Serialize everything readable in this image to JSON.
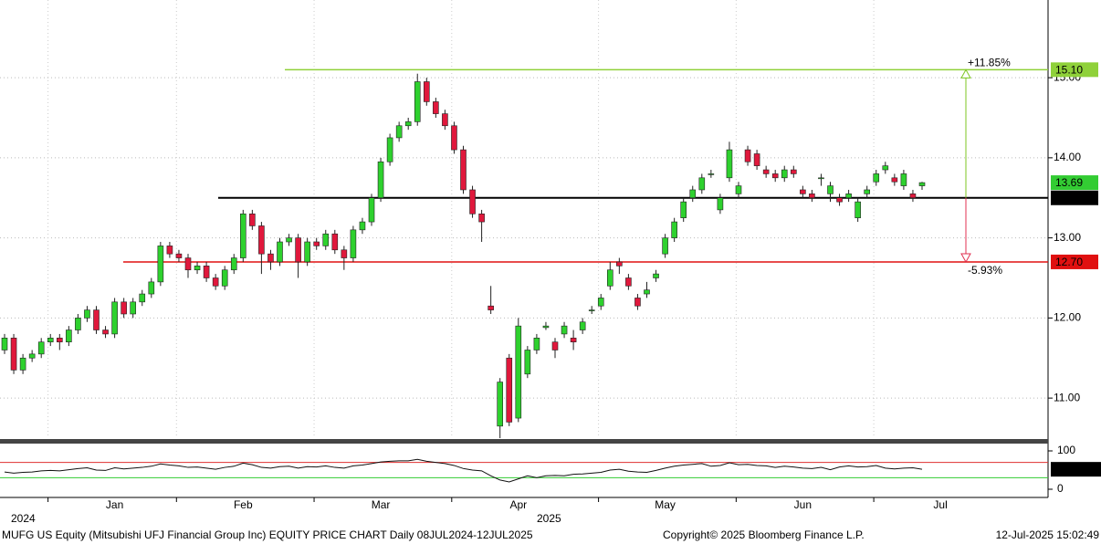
{
  "chart_data": {
    "type": "candlestick",
    "footer_left": "MUFG US Equity (Mitsubishi UFJ Financial Group Inc) EQUITY PRICE CHART  Daily 08JUL2024-12JUL2025",
    "footer_center": "Copyright© 2025 Bloomberg Finance L.P.",
    "footer_right": "12-Jul-2025 15:02:49",
    "year_labels": [
      "2024",
      "2025"
    ],
    "categories": [
      null,
      null,
      null,
      null,
      null,
      null,
      null,
      null,
      null,
      null,
      null,
      null,
      "Jan",
      null,
      null,
      null,
      null,
      null,
      null,
      null,
      null,
      null,
      null,
      null,
      null,
      null,
      "Feb",
      null,
      null,
      null,
      null,
      null,
      null,
      null,
      null,
      null,
      null,
      null,
      null,
      null,
      null,
      "Mar",
      null,
      null,
      null,
      null,
      null,
      null,
      null,
      null,
      null,
      null,
      null,
      null,
      null,
      null,
      "Apr",
      null,
      null,
      null,
      null,
      null,
      null,
      null,
      null,
      null,
      null,
      null,
      null,
      null,
      null,
      null,
      "May",
      null,
      null,
      null,
      null,
      null,
      null,
      null,
      null,
      null,
      null,
      null,
      null,
      null,
      null,
      "Jun",
      null,
      null,
      null,
      null,
      null,
      null,
      null,
      null,
      null,
      null,
      null,
      null,
      null,
      null,
      "Jul"
    ],
    "open": [
      11.6,
      11.75,
      11.35,
      11.5,
      11.55,
      11.7,
      11.75,
      11.7,
      11.85,
      12.0,
      12.1,
      11.85,
      11.8,
      12.2,
      12.05,
      12.2,
      12.3,
      12.45,
      12.9,
      12.8,
      12.75,
      12.6,
      12.65,
      12.5,
      12.4,
      12.6,
      12.75,
      13.3,
      13.15,
      12.8,
      12.7,
      12.95,
      13.0,
      12.7,
      12.95,
      12.9,
      13.05,
      12.85,
      12.75,
      13.1,
      13.2,
      13.5,
      13.95,
      14.25,
      14.4,
      14.45,
      14.95,
      14.7,
      14.55,
      14.4,
      14.1,
      13.6,
      13.3,
      12.15,
      10.65,
      11.5,
      10.75,
      11.3,
      11.6,
      11.88,
      11.7,
      11.8,
      11.75,
      11.85,
      12.1,
      12.15,
      12.4,
      12.7,
      12.5,
      12.25,
      12.3,
      12.5,
      12.8,
      13.0,
      13.25,
      13.5,
      13.6,
      13.8,
      13.35,
      13.75,
      13.55,
      14.1,
      14.05,
      13.85,
      13.8,
      13.75,
      13.85,
      13.6,
      13.55,
      13.75,
      13.55,
      13.5,
      13.5,
      13.25,
      13.55,
      13.7,
      13.85,
      13.75,
      13.65,
      13.55,
      13.65,
      null,
      null
    ],
    "high": [
      11.8,
      11.8,
      11.55,
      11.6,
      11.75,
      11.8,
      11.8,
      11.9,
      12.05,
      12.15,
      12.15,
      11.9,
      12.25,
      12.25,
      12.25,
      12.35,
      12.5,
      12.95,
      12.95,
      12.85,
      12.8,
      12.7,
      12.7,
      12.55,
      12.65,
      12.8,
      13.35,
      13.35,
      13.2,
      12.85,
      13.0,
      13.05,
      13.05,
      13.0,
      13.0,
      13.1,
      13.1,
      12.9,
      13.15,
      13.25,
      13.55,
      14.0,
      14.3,
      14.45,
      14.5,
      15.05,
      15.0,
      14.75,
      14.6,
      14.45,
      14.15,
      13.65,
      13.35,
      12.4,
      11.25,
      11.55,
      12.0,
      11.65,
      11.8,
      11.95,
      11.75,
      11.95,
      11.85,
      12.0,
      12.15,
      12.3,
      12.7,
      12.75,
      12.55,
      12.3,
      12.45,
      12.6,
      13.05,
      13.25,
      13.5,
      13.65,
      13.8,
      13.85,
      13.55,
      14.2,
      13.7,
      14.15,
      14.1,
      13.9,
      13.85,
      13.9,
      13.9,
      13.65,
      13.6,
      13.8,
      13.7,
      13.55,
      13.6,
      13.5,
      13.65,
      13.85,
      13.95,
      13.8,
      13.85,
      13.6,
      13.7,
      null,
      null
    ],
    "low": [
      11.55,
      11.3,
      11.3,
      11.45,
      11.5,
      11.65,
      11.6,
      11.65,
      11.8,
      11.95,
      11.8,
      11.75,
      11.75,
      12.0,
      12.0,
      12.15,
      12.25,
      12.4,
      12.75,
      12.7,
      12.5,
      12.55,
      12.45,
      12.35,
      12.35,
      12.55,
      12.7,
      13.1,
      12.55,
      12.6,
      12.65,
      12.9,
      12.5,
      12.65,
      12.85,
      12.85,
      12.8,
      12.6,
      12.7,
      13.05,
      13.15,
      13.45,
      13.9,
      14.2,
      14.35,
      14.4,
      14.65,
      14.5,
      14.35,
      14.05,
      13.55,
      13.25,
      12.95,
      12.05,
      10.5,
      10.65,
      10.7,
      11.25,
      11.55,
      11.85,
      11.5,
      11.75,
      11.6,
      11.8,
      12.05,
      12.1,
      12.35,
      12.55,
      12.35,
      12.1,
      12.25,
      12.45,
      12.75,
      12.95,
      13.2,
      13.45,
      13.55,
      13.75,
      13.3,
      13.7,
      13.5,
      13.9,
      13.85,
      13.75,
      13.7,
      13.7,
      13.75,
      13.5,
      13.45,
      13.65,
      13.45,
      13.4,
      13.45,
      13.2,
      13.5,
      13.65,
      13.8,
      13.65,
      13.6,
      13.45,
      13.6,
      null,
      null
    ],
    "close": [
      11.75,
      11.35,
      11.5,
      11.55,
      11.7,
      11.75,
      11.7,
      11.85,
      12.0,
      12.1,
      11.85,
      11.8,
      12.2,
      12.05,
      12.2,
      12.3,
      12.45,
      12.9,
      12.8,
      12.75,
      12.6,
      12.65,
      12.5,
      12.4,
      12.6,
      12.75,
      13.3,
      13.15,
      12.8,
      12.7,
      12.95,
      13.0,
      12.7,
      12.95,
      12.9,
      13.05,
      12.85,
      12.75,
      13.1,
      13.2,
      13.5,
      13.95,
      14.25,
      14.4,
      14.45,
      14.95,
      14.7,
      14.55,
      14.4,
      14.1,
      13.6,
      13.3,
      13.2,
      12.1,
      11.2,
      10.7,
      11.9,
      11.6,
      11.75,
      11.9,
      11.6,
      11.9,
      11.7,
      11.95,
      12.1,
      12.25,
      12.6,
      12.65,
      12.4,
      12.15,
      12.35,
      12.55,
      13.0,
      13.2,
      13.45,
      13.6,
      13.75,
      13.8,
      13.5,
      14.1,
      13.65,
      13.95,
      13.9,
      13.8,
      13.75,
      13.85,
      13.8,
      13.55,
      13.5,
      13.75,
      13.65,
      13.45,
      13.55,
      13.45,
      13.6,
      13.8,
      13.9,
      13.7,
      13.8,
      13.5,
      13.69,
      null,
      null
    ],
    "up_color": "#2ed12e",
    "down_color": "#e0183c",
    "ylim": [
      10.5,
      15.97
    ],
    "yticks": [
      {
        "value": 11,
        "label": "11.00"
      },
      {
        "value": 12,
        "label": "12.00"
      },
      {
        "value": 13,
        "label": "13.00"
      },
      {
        "value": 14,
        "label": "14.00"
      },
      {
        "value": 15,
        "label": "15.00"
      }
    ],
    "grid": true,
    "hlines": [
      {
        "value": 15.1,
        "label": "15.10",
        "color": "#8fd13a"
      },
      {
        "value": 13.5,
        "label": "13.50",
        "color": "#000000"
      },
      {
        "value": 12.7,
        "label": "12.70",
        "color": "#e01010"
      }
    ],
    "last_price": {
      "value": 13.69,
      "label": "13.69",
      "color": "#33cc33"
    },
    "annotations": [
      {
        "text": "+11.85%",
        "color": "#7cc520"
      },
      {
        "text": "-5.93%",
        "color": "#e03050"
      }
    ],
    "rsi": {
      "values": [
        45,
        42,
        44,
        45,
        48,
        49,
        48,
        51,
        54,
        56,
        50,
        49,
        56,
        53,
        55,
        57,
        60,
        66,
        63,
        61,
        57,
        58,
        55,
        52,
        57,
        60,
        68,
        64,
        57,
        55,
        59,
        60,
        55,
        59,
        58,
        61,
        57,
        55,
        61,
        63,
        67,
        71,
        73,
        74,
        74,
        78,
        73,
        70,
        67,
        62,
        54,
        50,
        48,
        35,
        24,
        19,
        27,
        35,
        30,
        35,
        36,
        35,
        39,
        40,
        42,
        44,
        50,
        52,
        47,
        45,
        44,
        49,
        55,
        60,
        63,
        65,
        67,
        60,
        62,
        69,
        64,
        65,
        62,
        61,
        57,
        60,
        58,
        55,
        54,
        57,
        51,
        58,
        61,
        58,
        59,
        62,
        55,
        53,
        55,
        56,
        52.0239,
        null,
        null
      ],
      "ylim": [
        0,
        100
      ],
      "yticks": [
        0,
        100
      ],
      "levels": [
        {
          "value": 70,
          "color": "#e03030"
        },
        {
          "value": 30,
          "color": "#33cc33"
        }
      ]
    }
  }
}
